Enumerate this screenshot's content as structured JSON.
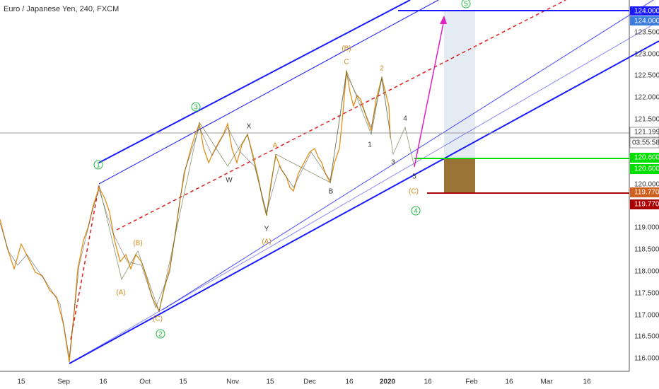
{
  "header": {
    "title": "Euro / Japanese Yen, 240, FXCM"
  },
  "price_axis": {
    "labels": [
      "123.500",
      "123.000",
      "122.500",
      "122.000",
      "121.500",
      "120.000",
      "119.000",
      "118.500",
      "118.000",
      "117.500",
      "117.000",
      "116.500",
      "116.000"
    ],
    "tags": {
      "target_top": "124.000",
      "target": "124.000",
      "last": "121.199",
      "countdown": "03:55:58",
      "entry_a": "120.600",
      "entry_b": "120.600",
      "stop_a": "119.770",
      "stop_b": "119.770"
    }
  },
  "time_axis": {
    "labels": [
      "15",
      "Sep",
      "16",
      "Oct",
      "15",
      "Nov",
      "15",
      "Dec",
      "16",
      "2020",
      "16",
      "Feb",
      "16",
      "Mar",
      "16"
    ]
  },
  "waves": {
    "circled": [
      "1",
      "2",
      "3",
      "4",
      "5"
    ],
    "minor": [
      "(A)",
      "(B)",
      "(C)",
      "W",
      "X",
      "Y",
      "(A)",
      "A",
      "B",
      "(B)",
      "C",
      "2",
      "1",
      "3",
      "4",
      "5",
      "(C)"
    ]
  }
}
